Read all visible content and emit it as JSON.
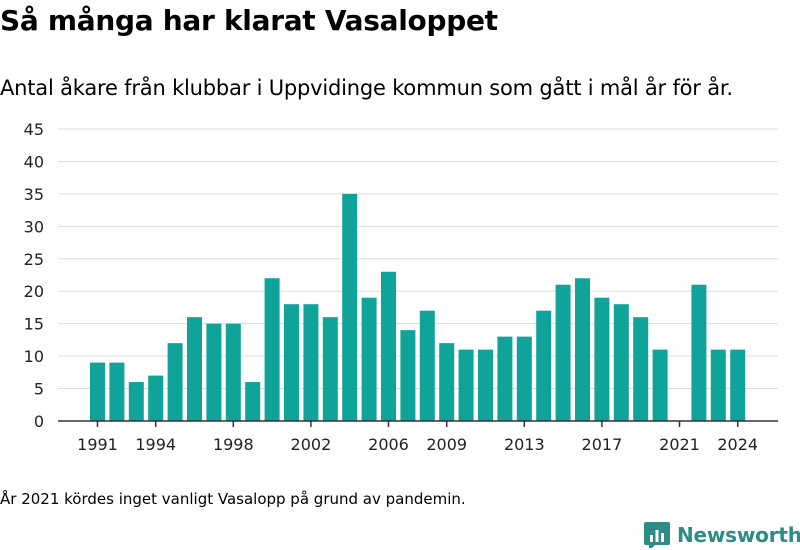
{
  "title": "Så många har klarat Vasaloppet",
  "subtitle": "Antal åkare från klubbar i Uppvidinge kommun som gått i mål år för år.",
  "footnote": "År 2021 kördes inget vanligt Vasalopp på grund av pandemin.",
  "brand": {
    "name": "Newsworthy",
    "color": "#2e8b87"
  },
  "colors": {
    "bar": "#0fa39a",
    "grid": "#dddddd",
    "axis": "#333333"
  },
  "chart_data": {
    "type": "bar",
    "categories": [
      1991,
      1992,
      1993,
      1994,
      1995,
      1996,
      1997,
      1998,
      1999,
      2000,
      2001,
      2002,
      2003,
      2004,
      2005,
      2006,
      2007,
      2008,
      2009,
      2010,
      2011,
      2012,
      2013,
      2014,
      2015,
      2016,
      2017,
      2018,
      2019,
      2020,
      2021,
      2022,
      2023,
      2024
    ],
    "values": [
      9,
      9,
      6,
      7,
      12,
      16,
      15,
      15,
      6,
      22,
      18,
      18,
      16,
      35,
      19,
      23,
      14,
      17,
      12,
      11,
      11,
      13,
      13,
      17,
      21,
      22,
      19,
      18,
      16,
      11,
      0,
      21,
      11,
      11
    ],
    "xticks": [
      "1991",
      "1994",
      "1998",
      "2002",
      "2006",
      "2009",
      "2013",
      "2017",
      "2021",
      "2024"
    ],
    "yticks": [
      0,
      5,
      10,
      15,
      20,
      25,
      30,
      35,
      40,
      45
    ],
    "ylim": [
      0,
      45
    ],
    "grid": true
  }
}
